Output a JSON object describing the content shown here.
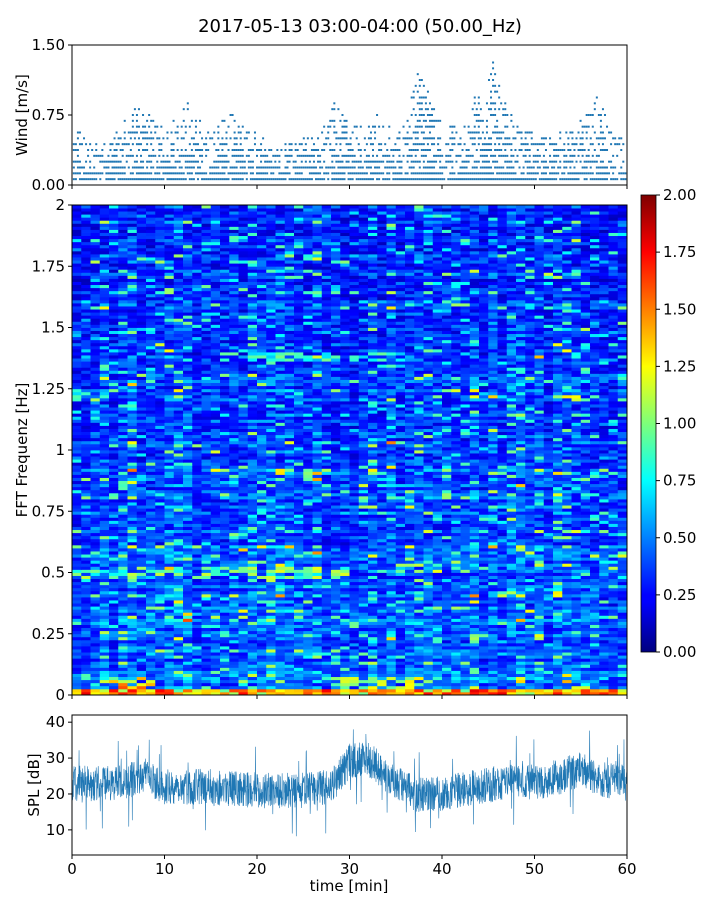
{
  "figure": {
    "title": "2017-05-13 03:00-04:00 (50.00_Hz)"
  },
  "colors": {
    "series": "#1f77b4",
    "frame": "#000000"
  },
  "chart_data": [
    {
      "type": "scatter",
      "panel": "wind",
      "title": "",
      "xlabel": "",
      "ylabel": "Wind [m/s]",
      "xlim": [
        0,
        60
      ],
      "ylim": [
        0,
        1.5
      ],
      "yticks": [
        0,
        0.75,
        1.5
      ],
      "ytick_labels": [
        "0.00",
        "0.75",
        "1.50"
      ],
      "xticks": [
        0,
        10,
        20,
        30,
        40,
        50,
        60
      ],
      "marker": "dot",
      "value_step": 0.0625,
      "envelope": [
        [
          0,
          0.7
        ],
        [
          2,
          0.5
        ],
        [
          4,
          0.45
        ],
        [
          6,
          0.78
        ],
        [
          8,
          0.88
        ],
        [
          10,
          0.6
        ],
        [
          12.5,
          0.88
        ],
        [
          15,
          0.55
        ],
        [
          17,
          0.78
        ],
        [
          19,
          0.65
        ],
        [
          21,
          0.5
        ],
        [
          23,
          0.45
        ],
        [
          25,
          0.5
        ],
        [
          27.5,
          0.68
        ],
        [
          28.5,
          0.95
        ],
        [
          30,
          0.62
        ],
        [
          32,
          0.7
        ],
        [
          33,
          0.78
        ],
        [
          35,
          0.55
        ],
        [
          36,
          0.65
        ],
        [
          37.5,
          1.3
        ],
        [
          38.5,
          1.0
        ],
        [
          40,
          0.75
        ],
        [
          42,
          0.58
        ],
        [
          43,
          0.7
        ],
        [
          43.5,
          1.1
        ],
        [
          44.5,
          0.78
        ],
        [
          45.5,
          1.5
        ],
        [
          46.5,
          1.0
        ],
        [
          48,
          0.7
        ],
        [
          50,
          0.55
        ],
        [
          52,
          0.55
        ],
        [
          54,
          0.62
        ],
        [
          56,
          0.78
        ],
        [
          57,
          1.0
        ],
        [
          58,
          0.62
        ],
        [
          60,
          0.45
        ]
      ]
    },
    {
      "type": "heatmap",
      "panel": "spectrogram",
      "title": "",
      "xlabel": "",
      "ylabel": "FFT Frequenz [Hz]",
      "xlim": [
        0,
        60
      ],
      "ylim": [
        0,
        2
      ],
      "yticks": [
        0,
        0.25,
        0.5,
        0.75,
        1,
        1.25,
        1.5,
        1.75,
        2
      ],
      "ytick_labels": [
        "0",
        "0.25",
        "0.5",
        "0.75",
        "1",
        "1.25",
        "1.5",
        "1.75",
        "2"
      ],
      "xticks": [
        0,
        10,
        20,
        30,
        40,
        50,
        60
      ],
      "colormap": "jet",
      "clim": [
        0,
        2
      ],
      "colorbar_ticks": [
        "0.00",
        "0.25",
        "0.50",
        "0.75",
        "1.00",
        "1.25",
        "1.50",
        "1.75",
        "2.00"
      ],
      "features": [
        {
          "freq": 0.5,
          "x_range": [
            0,
            30
          ],
          "level": 1.2
        },
        {
          "freq": 0.05,
          "x_range": [
            4,
            9
          ],
          "level": 1.8
        },
        {
          "freq": 0.05,
          "x_range": [
            28,
            38
          ],
          "level": 1.3
        },
        {
          "freq": 1.38,
          "x_range": [
            15,
            35
          ],
          "level": 1.0
        },
        {
          "freq": 0.0,
          "x_range": [
            0,
            60
          ],
          "level": 1.6
        }
      ]
    },
    {
      "type": "line",
      "panel": "spl",
      "title": "",
      "xlabel": "time [min]",
      "ylabel": "SPL [dB]",
      "xlim": [
        0,
        60
      ],
      "ylim": [
        3,
        42
      ],
      "yticks": [
        10,
        20,
        30,
        40
      ],
      "ytick_labels": [
        "10",
        "20",
        "30",
        "40"
      ],
      "xticks": [
        0,
        10,
        20,
        30,
        40,
        50,
        60
      ],
      "xtick_labels": [
        "0",
        "10",
        "20",
        "30",
        "40",
        "50",
        "60"
      ],
      "band_center": [
        [
          0,
          23
        ],
        [
          5,
          23
        ],
        [
          8,
          25
        ],
        [
          10,
          22
        ],
        [
          15,
          22
        ],
        [
          20,
          21
        ],
        [
          25,
          21
        ],
        [
          28,
          22
        ],
        [
          30,
          29
        ],
        [
          32,
          30
        ],
        [
          34,
          25
        ],
        [
          37,
          20
        ],
        [
          40,
          20
        ],
        [
          44,
          22
        ],
        [
          48,
          24
        ],
        [
          50,
          23
        ],
        [
          53,
          25
        ],
        [
          55,
          27
        ],
        [
          57,
          24
        ],
        [
          60,
          23
        ]
      ],
      "band_halfwidth": 5,
      "min": 6,
      "max": 38
    }
  ]
}
